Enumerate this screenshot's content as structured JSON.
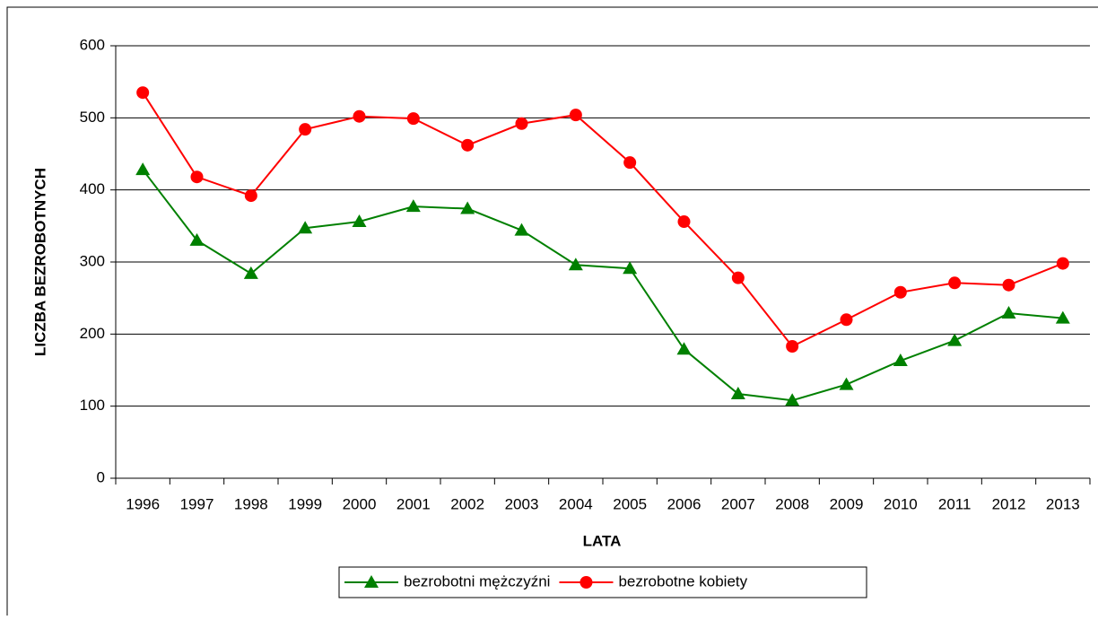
{
  "chart_data": {
    "type": "line",
    "x_label": "LATA",
    "y_label": "LICZBA BEZROBOTNYCH",
    "categories": [
      "1996",
      "1997",
      "1998",
      "1999",
      "2000",
      "2001",
      "2002",
      "2003",
      "2004",
      "2005",
      "2006",
      "2007",
      "2008",
      "2009",
      "2010",
      "2011",
      "2012",
      "2013"
    ],
    "series": [
      {
        "name": "bezrobotni mężczyźni",
        "color": "#008000",
        "marker": "triangle",
        "values": [
          428,
          330,
          284,
          347,
          356,
          377,
          374,
          344,
          296,
          291,
          179,
          117,
          108,
          130,
          163,
          191,
          229,
          222
        ]
      },
      {
        "name": "bezrobotne kobiety",
        "color": "#ff0000",
        "marker": "circle",
        "values": [
          535,
          418,
          392,
          484,
          502,
          499,
          462,
          492,
          504,
          438,
          356,
          278,
          183,
          220,
          258,
          271,
          268,
          298
        ]
      }
    ],
    "ylim": [
      0,
      600
    ],
    "yticks": [
      0,
      100,
      200,
      300,
      400,
      500,
      600
    ],
    "grid": true,
    "legend": "bottom"
  }
}
